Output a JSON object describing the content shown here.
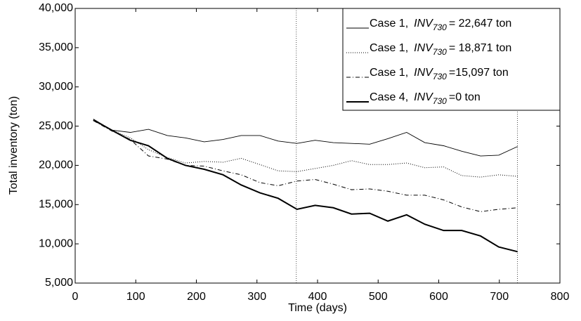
{
  "chart_data": {
    "type": "line",
    "xlabel": "Time (days)",
    "ylabel": "Total inventory (ton)",
    "x": [
      30,
      60,
      91,
      121,
      152,
      182,
      213,
      244,
      274,
      305,
      335,
      366,
      396,
      426,
      456,
      486,
      516,
      547,
      577,
      608,
      638,
      669,
      699,
      730
    ],
    "series": [
      {
        "name": "Case 1,",
        "var": "INV",
        "subscript": "730",
        "suffix": "= 22,647 ton",
        "color": "#000000",
        "style": "solid",
        "width": 0.9,
        "values": [
          25900,
          24500,
          24200,
          24600,
          23800,
          23500,
          23000,
          23300,
          23800,
          23800,
          23100,
          22800,
          23200,
          22900,
          22800,
          22700,
          23400,
          24200,
          22900,
          22500,
          21800,
          21200,
          21300,
          22400
        ]
      },
      {
        "name": "Case 1,",
        "var": "INV",
        "subscript": "730",
        "suffix": "= 18,871 ton",
        "color": "#000000",
        "style": "dotted",
        "width": 1,
        "values": [
          25700,
          24500,
          23500,
          22000,
          21000,
          20300,
          20500,
          20400,
          20900,
          20100,
          19300,
          19200,
          19600,
          20000,
          20600,
          20100,
          20100,
          20300,
          19700,
          19800,
          18700,
          18500,
          18800,
          18600
        ]
      },
      {
        "name": "Case 1,",
        "var": "INV",
        "subscript": "730",
        "suffix": "=15,097 ton",
        "color": "#000000",
        "style": "dashdot",
        "width": 1,
        "values": [
          25700,
          24400,
          23300,
          21200,
          20800,
          20000,
          19900,
          19300,
          18800,
          17800,
          17400,
          18000,
          18200,
          17600,
          16900,
          17000,
          16700,
          16200,
          16200,
          15600,
          14700,
          14100,
          14400,
          14600
        ]
      },
      {
        "name": "Case 4,",
        "var": "INV",
        "subscript": "730",
        "suffix": "=0 ton",
        "color": "#000000",
        "style": "solid",
        "width": 2,
        "values": [
          25800,
          24500,
          23200,
          22500,
          20900,
          20000,
          19500,
          18800,
          17500,
          16500,
          15800,
          14400,
          14900,
          14600,
          13800,
          13900,
          12900,
          13700,
          12500,
          11700,
          11700,
          11000,
          9600,
          9000
        ]
      }
    ],
    "reference_lines_x": [
      365,
      730
    ],
    "xlim": [
      0,
      800
    ],
    "xticks": [
      0,
      100,
      200,
      300,
      400,
      500,
      600,
      700,
      800
    ],
    "ylim": [
      5000,
      40000
    ],
    "yticks": [
      {
        "value": 5000,
        "label": "5,000"
      },
      {
        "value": 10000,
        "label": "10,000"
      },
      {
        "value": 15000,
        "label": "15,000"
      },
      {
        "value": 20000,
        "label": "20,000"
      },
      {
        "value": 25000,
        "label": "25,000"
      },
      {
        "value": 30000,
        "label": "30,000"
      },
      {
        "value": 35000,
        "label": "35,000"
      },
      {
        "value": 40000,
        "label": "40,000"
      }
    ],
    "legend": "upper right"
  }
}
